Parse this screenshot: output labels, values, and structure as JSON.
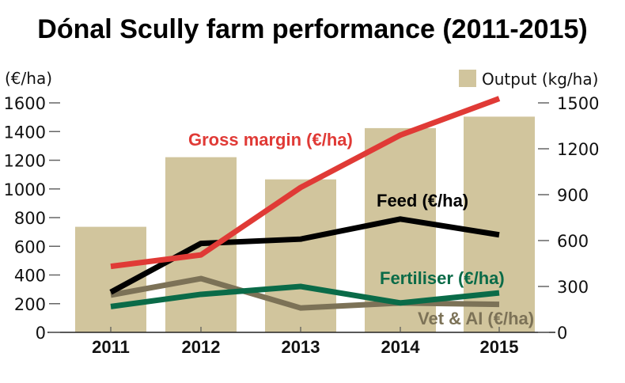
{
  "chart_data": {
    "type": "bar+line",
    "title": "Dónal Scully farm performance (2011-2015)",
    "categories": [
      "2011",
      "2012",
      "2013",
      "2014",
      "2015"
    ],
    "left_axis": {
      "label": "(€/ha)",
      "ylim": [
        0,
        1600
      ],
      "ticks": [
        0,
        200,
        400,
        600,
        800,
        1000,
        1200,
        1400,
        1600
      ]
    },
    "right_axis": {
      "label": "Output (kg/ha)",
      "ylim": [
        0,
        1500
      ],
      "ticks": [
        0,
        300,
        600,
        900,
        1200,
        1500
      ]
    },
    "bars": {
      "name": "Output (kg/ha)",
      "axis": "right",
      "color": "#d1c59d",
      "values": [
        690,
        1145,
        1000,
        1335,
        1410
      ]
    },
    "series": [
      {
        "name": "Gross margin (€/ha)",
        "axis": "left",
        "color": "#e03a36",
        "values": [
          460,
          540,
          1010,
          1375,
          1630
        ]
      },
      {
        "name": "Feed (€/ha)",
        "axis": "left",
        "color": "#000000",
        "values": [
          280,
          620,
          650,
          790,
          680
        ]
      },
      {
        "name": "Fertiliser (€/ha)",
        "axis": "left",
        "color": "#0a6b48",
        "values": [
          180,
          265,
          320,
          205,
          275
        ]
      },
      {
        "name": "Vet & AI (€/ha)",
        "axis": "left",
        "color": "#7c7257",
        "values": [
          260,
          375,
          170,
          205,
          195
        ]
      }
    ],
    "legend": {
      "position": "top-right",
      "entries": [
        "Output (kg/ha)"
      ]
    },
    "grid": false
  }
}
